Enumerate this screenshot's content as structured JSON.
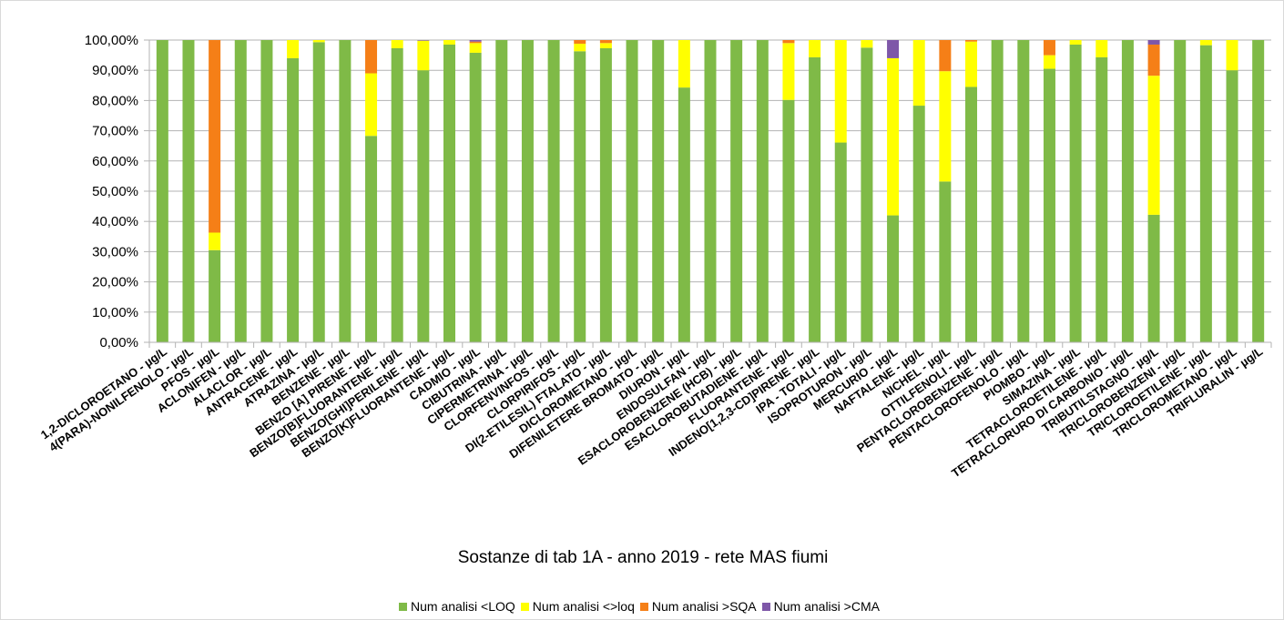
{
  "chart_data": {
    "type": "bar",
    "stacked": true,
    "title": "Sostanze di tab 1A - anno 2019 - rete MAS fiumi",
    "xlabel": "",
    "ylabel": "",
    "ylim": [
      0,
      100
    ],
    "ytick_labels": [
      "0,00%",
      "10,00%",
      "20,00%",
      "30,00%",
      "40,00%",
      "50,00%",
      "60,00%",
      "70,00%",
      "80,00%",
      "90,00%",
      "100,00%"
    ],
    "grid": true,
    "legend_position": "bottom",
    "categories": [
      "1,2-DICLOROETANO - µg/L",
      "4(PARA)-NONILFENOLO - µg/L",
      "PFOS - µg/L",
      "ACLONIFEN - µg/L",
      "ALACLOR - µg/L",
      "ANTRACENE - µg/L",
      "ATRAZINA - µg/L",
      "BENZENE - µg/L",
      "BENZO [A] PIRENE - µg/L",
      "BENZO[B]FLUORANTENE - µg/L",
      "BENZO[GHI]PERILENE - µg/L",
      "BENZO[K]FLUORANTENE - µg/L",
      "CADMIO - µg/L",
      "CIBUTRINA - µg/L",
      "CIPERMETRINA - µg/L",
      "CLORFENVINFOS - µg/L",
      "CLORPIRIFOS - µg/L",
      "DI(2-ETILESIL) FTALATO - µg/L",
      "DICLOROMETANO - µg/L",
      "DIFENILETERE BROMATO - µg/L",
      "DIURON - µg/L",
      "ENDOSULFAN - µg/L",
      "ESACLOROBENZENE (HCB) - µg/L",
      "ESACLOROBUTADIENE - µg/L",
      "FLUORANTENE - µg/L",
      "INDENO[1,2,3-CD]PIRENE - µg/L",
      "IPA - TOTALI - µg/L",
      "ISOPROTURON - µg/L",
      "MERCURIO - µg/L",
      "NAFTALENE - µg/L",
      "NICHEL - µg/L",
      "OTTILFENOLI - µg/L",
      "PENTACLOROBENZENE - µg/L",
      "PENTACLOROFENOLO - µg/L",
      "PIOMBO - µg/L",
      "SIMAZINA - µg/L",
      "TETRACLOROETILENE - µg/L",
      "TETRACLORURO DI CARBONIO - µg/L",
      "TRIBUTILSTAGNO - µg/L",
      "TRICLOROBENZENI - µg/L",
      "TRICLOROETILENE - µg/L",
      "TRICLOROMETANO - µg/L",
      "TRIFLURALIN - µg/L"
    ],
    "series": [
      {
        "name": "Num analisi <LOQ",
        "color": "#7fba47",
        "values": [
          100,
          100,
          30.5,
          100,
          100,
          94,
          99.3,
          100,
          68.3,
          97.3,
          90,
          98.5,
          95.8,
          100,
          100,
          100,
          96.3,
          97.3,
          100,
          100,
          84.3,
          100,
          100,
          100,
          80.2,
          94.3,
          66.1,
          97.5,
          42,
          78.3,
          53.2,
          84.5,
          100,
          100,
          90.5,
          98.5,
          94.3,
          100,
          42.2,
          100,
          98.3,
          90,
          100
        ]
      },
      {
        "name": "Num analisi <>loq",
        "color": "#ffff00",
        "values": [
          0,
          0,
          5.8,
          0,
          0,
          6,
          0.7,
          0,
          20.7,
          2.7,
          9.8,
          1.5,
          3.2,
          0,
          0,
          0,
          2.5,
          1.7,
          0,
          0,
          15.7,
          0,
          0,
          0,
          18.8,
          5.7,
          33.9,
          2.5,
          52,
          21.7,
          36.5,
          15,
          0,
          0,
          4.5,
          1.5,
          5.7,
          0,
          46,
          0,
          1.7,
          10,
          0
        ]
      },
      {
        "name": "Num analisi >SQA",
        "color": "#f57f17",
        "values": [
          0,
          0,
          63.7,
          0,
          0,
          0,
          0,
          0,
          11,
          0,
          0,
          0,
          0.5,
          0,
          0,
          0,
          1.2,
          1,
          0,
          0,
          0,
          0,
          0,
          0,
          1,
          0,
          0,
          0,
          0,
          0,
          10.3,
          0.5,
          0,
          0,
          5,
          0,
          0,
          0,
          10.3,
          0,
          0,
          0,
          0
        ]
      },
      {
        "name": "Num analisi >CMA",
        "color": "#7e57a8",
        "values": [
          0,
          0,
          0,
          0,
          0,
          0,
          0,
          0,
          0,
          0,
          0.2,
          0,
          0.5,
          0,
          0,
          0,
          0,
          0,
          0,
          0,
          0,
          0,
          0,
          0,
          0,
          0,
          0,
          0,
          6,
          0,
          0,
          0,
          0,
          0,
          0,
          0,
          0,
          0,
          1.5,
          0,
          0,
          0,
          0
        ]
      }
    ]
  }
}
